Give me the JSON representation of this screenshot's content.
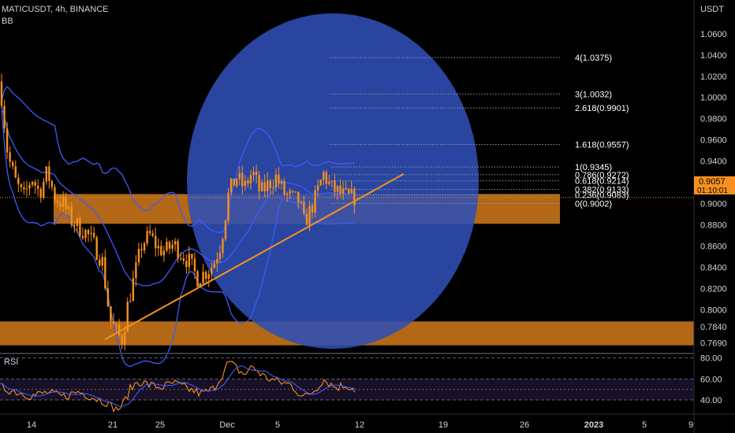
{
  "header": {
    "symbol": "MATICUSDT, 4h, BINANCE",
    "indicator": "BB",
    "currency": "USDT"
  },
  "price_box": {
    "price": "0.9057",
    "countdown": "01:10:01"
  },
  "rsi_label": "RSI",
  "colors": {
    "background": "#000000",
    "candle": "#f6901e",
    "bollinger": "#3d5afe",
    "zone": "#f6901e",
    "circle": "#2f4fb5",
    "trendline": "#f6901e",
    "fib_line": "#9598a1",
    "rsi_band": "#2a1d45"
  },
  "chart_data": [
    {
      "type": "line",
      "title": "MATICUSDT, 4h, BINANCE",
      "subtype": "candlestick with Bollinger Bands",
      "x_ticks": [
        "14",
        "21",
        "25",
        "Dec",
        "5",
        "12",
        "19",
        "26",
        "2023",
        "5",
        "9"
      ],
      "y_ticks": [
        "1.0600",
        "1.0400",
        "1.0200",
        "1.0000",
        "0.9800",
        "0.9600",
        "0.9400",
        "0.9200",
        "0.9000",
        "0.8800",
        "0.8600",
        "0.8400",
        "0.8200",
        "0.8000",
        "0.7840",
        "0.7690"
      ],
      "ylim": [
        0.7655,
        1.0695
      ],
      "approx_close_path": [
        [
          0,
          1.015
        ],
        [
          10,
          0.945
        ],
        [
          20,
          0.92
        ],
        [
          30,
          0.905
        ],
        [
          40,
          0.925
        ],
        [
          50,
          0.91
        ],
        [
          60,
          0.93
        ],
        [
          70,
          0.905
        ],
        [
          80,
          0.9
        ],
        [
          90,
          0.885
        ],
        [
          100,
          0.878
        ],
        [
          110,
          0.872
        ],
        [
          120,
          0.86
        ],
        [
          130,
          0.845
        ],
        [
          135,
          0.815
        ],
        [
          140,
          0.79
        ],
        [
          148,
          0.778
        ],
        [
          155,
          0.772
        ],
        [
          162,
          0.805
        ],
        [
          170,
          0.83
        ],
        [
          180,
          0.862
        ],
        [
          190,
          0.87
        ],
        [
          200,
          0.858
        ],
        [
          210,
          0.855
        ],
        [
          220,
          0.862
        ],
        [
          230,
          0.853
        ],
        [
          240,
          0.845
        ],
        [
          250,
          0.83
        ],
        [
          260,
          0.835
        ],
        [
          270,
          0.842
        ],
        [
          280,
          0.862
        ],
        [
          285,
          0.885
        ],
        [
          290,
          0.91
        ],
        [
          300,
          0.925
        ],
        [
          310,
          0.915
        ],
        [
          320,
          0.93
        ],
        [
          330,
          0.91
        ],
        [
          340,
          0.918
        ],
        [
          350,
          0.925
        ],
        [
          360,
          0.91
        ],
        [
          370,
          0.905
        ],
        [
          380,
          0.902
        ],
        [
          385,
          0.882
        ],
        [
          390,
          0.888
        ],
        [
          400,
          0.905
        ],
        [
          410,
          0.928
        ],
        [
          420,
          0.915
        ],
        [
          430,
          0.91
        ],
        [
          440,
          0.906
        ],
        [
          450,
          0.9057
        ]
      ],
      "fib_levels": [
        {
          "label": "4(1.0375)",
          "value": 1.0375
        },
        {
          "label": "3(1.0032)",
          "value": 1.0032
        },
        {
          "label": "2.618(0.9901)",
          "value": 0.9901
        },
        {
          "label": "1.618(0.9557)",
          "value": 0.9557
        },
        {
          "label": "1(0.9345)",
          "value": 0.9345
        },
        {
          "label": "0.786(0.9272)",
          "value": 0.9272
        },
        {
          "label": "0.618(0.9214)",
          "value": 0.9214
        },
        {
          "label": "0.382(0.9133)",
          "value": 0.9133
        },
        {
          "label": "0.236(0.9083)",
          "value": 0.9083
        },
        {
          "label": "0(0.9002)",
          "value": 0.9002
        }
      ],
      "zones": [
        {
          "from": 0.881,
          "to": 0.909
        },
        {
          "from": 0.7665,
          "to": 0.789
        }
      ],
      "trendline": {
        "start": 0.772,
        "end": 0.928
      },
      "last_price": 0.9057
    },
    {
      "type": "line",
      "title": "RSI",
      "y_ticks": [
        "80.00",
        "60.00",
        "40.00"
      ],
      "ylim": [
        28,
        82
      ],
      "band": [
        40,
        60
      ],
      "approx_values": [
        [
          0,
          52
        ],
        [
          20,
          48
        ],
        [
          40,
          44
        ],
        [
          60,
          47
        ],
        [
          80,
          43
        ],
        [
          100,
          48
        ],
        [
          120,
          42
        ],
        [
          135,
          38
        ],
        [
          145,
          30
        ],
        [
          155,
          34
        ],
        [
          165,
          50
        ],
        [
          175,
          58
        ],
        [
          190,
          54
        ],
        [
          205,
          52
        ],
        [
          220,
          56
        ],
        [
          240,
          50
        ],
        [
          255,
          46
        ],
        [
          270,
          50
        ],
        [
          280,
          62
        ],
        [
          290,
          76
        ],
        [
          300,
          70
        ],
        [
          310,
          64
        ],
        [
          320,
          72
        ],
        [
          335,
          62
        ],
        [
          350,
          58
        ],
        [
          370,
          54
        ],
        [
          385,
          42
        ],
        [
          400,
          50
        ],
        [
          410,
          60
        ],
        [
          425,
          52
        ],
        [
          440,
          54
        ],
        [
          450,
          50
        ]
      ]
    }
  ]
}
